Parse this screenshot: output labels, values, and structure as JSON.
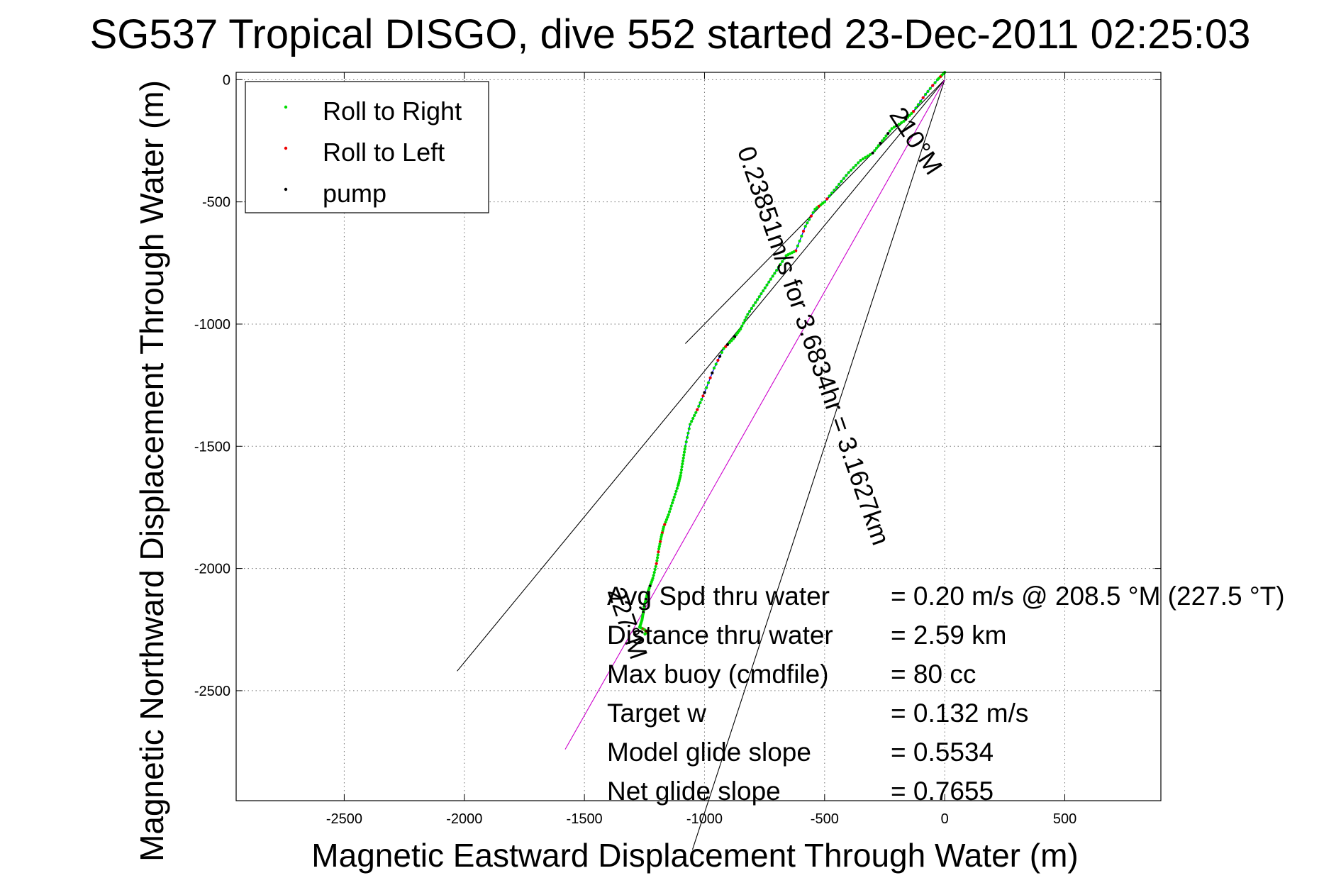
{
  "chart_data": {
    "type": "line",
    "title": "SG537 Tropical DISGO, dive 552 started 23-Dec-2011 02:25:03",
    "xlabel": "Magnetic Eastward Displacement Through Water (m)",
    "ylabel": "Magnetic Northward Displacement Through Water (m)",
    "xlim": [
      -2950,
      900
    ],
    "ylim": [
      -2950,
      30
    ],
    "xticks": [
      -2500,
      -2000,
      -1500,
      -1000,
      -500,
      0,
      500
    ],
    "yticks": [
      0,
      -500,
      -1000,
      -1500,
      -2000,
      -2500
    ],
    "grid": true,
    "legend": {
      "placement": "top-left",
      "entries": [
        {
          "label": "Roll to Right",
          "color": "#00dd00"
        },
        {
          "label": "Roll to Left",
          "color": "#ee0000"
        },
        {
          "label": "pump",
          "color": "#000000"
        }
      ]
    },
    "series": [
      {
        "line_color": "#0000ff",
        "x": [
          0,
          -30,
          -80,
          -130,
          -170,
          -220,
          -260,
          -300,
          -350,
          -400,
          -450,
          -500,
          -540,
          -580,
          -620,
          -660,
          -700,
          -740,
          -780,
          -820,
          -850,
          -880,
          -920,
          -960,
          -1000,
          -1030,
          -1060,
          -1080,
          -1090,
          -1100,
          -1110,
          -1130,
          -1150,
          -1170,
          -1180,
          -1190,
          -1200,
          -1215,
          -1230,
          -1240,
          -1250,
          -1255,
          -1260,
          -1270,
          -1250,
          -1240,
          -1250
        ],
        "y": [
          30,
          0,
          -60,
          -130,
          -170,
          -200,
          -250,
          -300,
          -330,
          -380,
          -440,
          -500,
          -530,
          -600,
          -700,
          -720,
          -780,
          -840,
          -900,
          -960,
          -1020,
          -1060,
          -1100,
          -1180,
          -1280,
          -1350,
          -1410,
          -1500,
          -1560,
          -1620,
          -1660,
          -1720,
          -1780,
          -1830,
          -1870,
          -1920,
          -1980,
          -2040,
          -2080,
          -2110,
          -2150,
          -2180,
          -2210,
          -2240,
          -2250,
          -2260,
          -2270
        ]
      }
    ],
    "reference_lines": [
      {
        "name": "210 deg M",
        "color": "#000000",
        "x": [
          0,
          -2030
        ],
        "y": [
          0,
          -2420
        ]
      },
      {
        "name": "227 deg M",
        "color": "#000000",
        "x": [
          0,
          -1050
        ],
        "y": [
          0,
          -3150
        ]
      },
      {
        "name": "depth averaged current",
        "color": "#000000",
        "x": [
          0,
          -1080
        ],
        "y": [
          0,
          -1080
        ]
      },
      {
        "name": "average track",
        "color": "#cc00cc",
        "x": [
          0,
          -1580
        ],
        "y": [
          0,
          -2740
        ]
      }
    ],
    "annotations": [
      {
        "text": "210°M",
        "x": -150,
        "y": -270,
        "rotation_deg": 57
      },
      {
        "text": "0.23851m/s for 3.6834hr = 3.1627km",
        "x": -580,
        "y": -1100,
        "rotation_deg": 71
      },
      {
        "text": "227°M",
        "x": -1355,
        "y": -2235,
        "rotation_deg": 71
      }
    ],
    "stats": [
      {
        "label": "Avg Spd thru water",
        "value": "=  0.20 m/s @ 208.5 °M (227.5 °T)"
      },
      {
        "label": "Distance thru water",
        "value": "=  2.59 km"
      },
      {
        "label": "Max buoy (cmdfile)",
        "value": "= 80 cc"
      },
      {
        "label": "Target w",
        "value": "= 0.132 m/s"
      },
      {
        "label": "Model glide slope",
        "value": "= 0.5534"
      },
      {
        "label": "Net glide slope",
        "value": "= 0.7655"
      }
    ]
  }
}
